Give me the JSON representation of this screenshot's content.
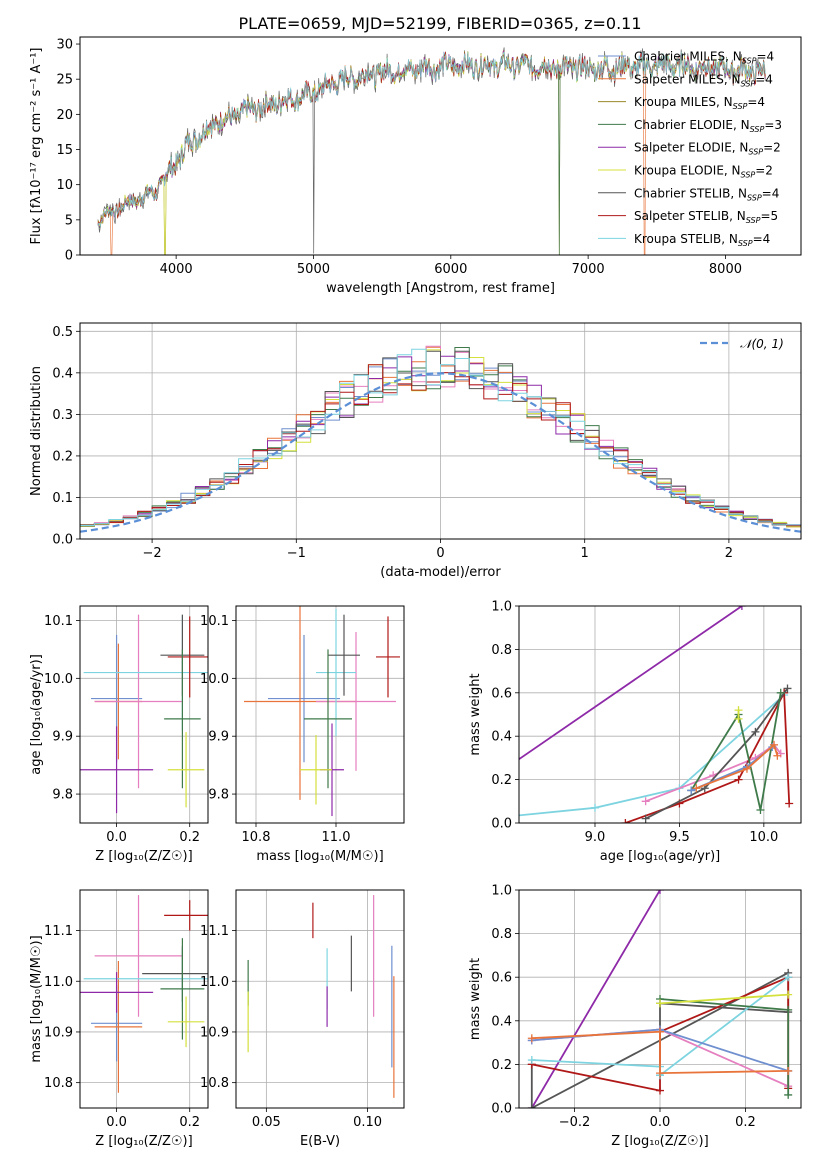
{
  "title": "PLATE=0659, MJD=52199, FIBERID=0365, z=0.11",
  "colors": {
    "chabrier_miles": "#6f8fcf",
    "salpeter_miles": "#e8743b",
    "kroupa_miles": "#9a8a2a",
    "chabrier_elodie": "#3f7a4a",
    "salpeter_elodie": "#8e2aa8",
    "kroupa_elodie": "#d4e03c",
    "chabrier_stelib": "#555555",
    "salpeter_stelib": "#b01818",
    "kroupa_stelib": "#7dd4e0",
    "normal": "#5b8fd6",
    "pink": "#e57fbf",
    "grid": "#b0b0b0"
  },
  "legend_top": [
    {
      "key": "chabrier_miles",
      "label": "Chabrier MILES, N",
      "sub": "SSP",
      "n": "=4"
    },
    {
      "key": "salpeter_miles",
      "label": "Salpeter MILES, N",
      "sub": "SSP",
      "n": "=4"
    },
    {
      "key": "kroupa_miles",
      "label": "Kroupa MILES, N",
      "sub": "SSP",
      "n": "=4"
    },
    {
      "key": "chabrier_elodie",
      "label": "Chabrier ELODIE, N",
      "sub": "SSP",
      "n": "=3"
    },
    {
      "key": "salpeter_elodie",
      "label": "Salpeter ELODIE, N",
      "sub": "SSP",
      "n": "=2"
    },
    {
      "key": "kroupa_elodie",
      "label": "Kroupa ELODIE, N",
      "sub": "SSP",
      "n": "=2"
    },
    {
      "key": "chabrier_stelib",
      "label": "Chabrier STELIB, N",
      "sub": "SSP",
      "n": "=4"
    },
    {
      "key": "salpeter_stelib",
      "label": "Salpeter STELIB, N",
      "sub": "SSP",
      "n": "=5"
    },
    {
      "key": "kroupa_stelib",
      "label": "Kroupa STELIB, N",
      "sub": "SSP",
      "n": "=4"
    }
  ],
  "legend_hist": "𝒩(0, 1)",
  "chart_data": [
    {
      "type": "line",
      "panel": "spectrum",
      "xlabel": "wavelength [Angstrom, rest frame]",
      "ylabel": "Flux [fλ10⁻¹⁷ erg cm⁻² s⁻¹ A⁻¹]",
      "xlim": [
        3300,
        8550
      ],
      "ylim": [
        0,
        31
      ],
      "xticks": [
        "4000",
        "5000",
        "6000",
        "7000",
        "8000"
      ],
      "yticks": [
        "0",
        "5",
        "10",
        "15",
        "20",
        "25",
        "30"
      ],
      "x_range": [
        3430,
        8290
      ],
      "continuum": [
        [
          3430,
          5
        ],
        [
          3600,
          7
        ],
        [
          3850,
          9
        ],
        [
          3950,
          12
        ],
        [
          4100,
          16
        ],
        [
          4300,
          19
        ],
        [
          4600,
          21
        ],
        [
          5000,
          23
        ],
        [
          5200,
          25
        ],
        [
          5500,
          26
        ],
        [
          6000,
          27
        ],
        [
          6500,
          27
        ],
        [
          7000,
          26.5
        ],
        [
          7500,
          27
        ],
        [
          8000,
          26.5
        ],
        [
          8290,
          26
        ]
      ]
    },
    {
      "type": "bar",
      "panel": "residual_histogram",
      "xlabel": "(data-model)/error",
      "ylabel": "Normed distribution",
      "xlim": [
        -2.5,
        2.5
      ],
      "ylim": [
        0,
        0.52
      ],
      "xticks": [
        "−2",
        "−1",
        "0",
        "1",
        "2"
      ],
      "yticks": [
        "0.0",
        "0.1",
        "0.2",
        "0.3",
        "0.4",
        "0.5"
      ],
      "bin_width": 0.1,
      "reference": "normal(0,1)"
    },
    {
      "type": "scatter",
      "panel": "age_vs_Z",
      "xlabel": "Z [log₁₀(Z/Z☉)]",
      "ylabel": "age  [log₁₀(age/yr)]",
      "xlim": [
        -0.1,
        0.25
      ],
      "ylim": [
        9.75,
        10.125
      ],
      "xticks": [
        "0.0",
        "0.2"
      ],
      "yticks": [
        "9.8",
        "9.9",
        "10.0",
        "10.1"
      ],
      "points": [
        {
          "s": "chabrier_miles",
          "x": 0.0,
          "xerr": 0.07,
          "y": 9.965,
          "yerr": 0.11
        },
        {
          "s": "salpeter_miles",
          "x": 0.005,
          "xerr": 0.065,
          "y": 9.96,
          "yerr": 0.1
        },
        {
          "s": "pink",
          "x": 0.06,
          "xerr": 0.12,
          "y": 9.96,
          "yerr": 0.15
        },
        {
          "s": "kroupa_stelib",
          "x": 0.18,
          "xerr": 0.27,
          "y": 10.01,
          "yerr": 0.1
        },
        {
          "s": "chabrier_stelib",
          "x": 0.18,
          "xerr": 0.06,
          "y": 10.04,
          "yerr": 0.07
        },
        {
          "s": "salpeter_stelib",
          "x": 0.2,
          "xerr": 0.06,
          "y": 10.037,
          "yerr": 0.07
        },
        {
          "s": "chabrier_elodie",
          "x": 0.18,
          "xerr": 0.05,
          "y": 9.93,
          "yerr": 0.12
        },
        {
          "s": "salpeter_elodie",
          "x": 0.0,
          "xerr": 0.1,
          "y": 9.842,
          "yerr": 0.075
        },
        {
          "s": "kroupa_elodie",
          "x": 0.19,
          "xerr": 0.05,
          "y": 9.842,
          "yerr": 0.065
        }
      ]
    },
    {
      "type": "scatter",
      "panel": "age_vs_mass",
      "xlabel": "mass [log₁₀(M/M☉)]",
      "ylabel": "",
      "xlim": [
        10.75,
        11.17
      ],
      "ylim": [
        9.75,
        10.125
      ],
      "xticks": [
        "10.8",
        "11.0"
      ],
      "yticks": [
        "9.8",
        "9.9",
        "10.0",
        "10.1"
      ],
      "points": [
        {
          "s": "chabrier_miles",
          "x": 10.92,
          "xerr": 0.09,
          "y": 9.965,
          "yerr": 0.11
        },
        {
          "s": "salpeter_miles",
          "x": 10.91,
          "xerr": 0.14,
          "y": 9.96,
          "yerr": 0.17
        },
        {
          "s": "pink",
          "x": 11.05,
          "xerr": 0.1,
          "y": 9.96,
          "yerr": 0.12
        },
        {
          "s": "kroupa_stelib",
          "x": 11.0,
          "xerr": 0.05,
          "y": 10.01,
          "yerr": 0.11
        },
        {
          "s": "chabrier_stelib",
          "x": 11.02,
          "xerr": 0.04,
          "y": 10.04,
          "yerr": 0.07
        },
        {
          "s": "salpeter_stelib",
          "x": 11.13,
          "xerr": 0.03,
          "y": 10.037,
          "yerr": 0.07
        },
        {
          "s": "chabrier_elodie",
          "x": 10.98,
          "xerr": 0.06,
          "y": 9.93,
          "yerr": 0.12
        },
        {
          "s": "salpeter_elodie",
          "x": 10.99,
          "xerr": 0.03,
          "y": 9.842,
          "yerr": 0.08
        },
        {
          "s": "kroupa_elodie",
          "x": 10.95,
          "xerr": 0.04,
          "y": 9.842,
          "yerr": 0.06
        }
      ]
    },
    {
      "type": "line",
      "panel": "massweight_vs_age",
      "xlabel": "age  [log₁₀(age/yr)]",
      "ylabel": "mass weight",
      "xlim": [
        8.55,
        10.22
      ],
      "ylim": [
        0,
        1
      ],
      "xticks": [
        "9.0",
        "9.5",
        "10.0"
      ],
      "yticks": [
        "0.0",
        "0.2",
        "0.4",
        "0.6",
        "0.8",
        "1.0"
      ],
      "series": [
        {
          "s": "salpeter_elodie",
          "pts": [
            [
              8.0,
              0.0
            ],
            [
              9.87,
              1.0
            ]
          ]
        },
        {
          "s": "kroupa_stelib",
          "pts": [
            [
              8.1,
              0.0
            ],
            [
              9.0,
              0.07
            ],
            [
              9.5,
              0.16
            ],
            [
              10.12,
              0.59
            ]
          ]
        },
        {
          "s": "pink",
          "pts": [
            [
              9.3,
              0.1
            ],
            [
              9.7,
              0.22
            ],
            [
              9.95,
              0.3
            ],
            [
              10.06,
              0.36
            ],
            [
              10.1,
              0.32
            ]
          ]
        },
        {
          "s": "salpeter_stelib",
          "pts": [
            [
              9.18,
              0.0
            ],
            [
              9.5,
              0.09
            ],
            [
              9.85,
              0.2
            ],
            [
              10.12,
              0.6
            ],
            [
              10.15,
              0.09
            ]
          ]
        },
        {
          "s": "chabrier_stelib",
          "pts": [
            [
              9.3,
              0.02
            ],
            [
              9.65,
              0.16
            ],
            [
              9.95,
              0.42
            ],
            [
              10.14,
              0.62
            ]
          ]
        },
        {
          "s": "chabrier_elodie",
          "pts": [
            [
              9.57,
              0.15
            ],
            [
              9.85,
              0.5
            ],
            [
              9.98,
              0.06
            ],
            [
              10.1,
              0.6
            ]
          ]
        },
        {
          "s": "chabrier_miles",
          "pts": [
            [
              9.57,
              0.15
            ],
            [
              9.9,
              0.26
            ],
            [
              10.05,
              0.35
            ]
          ]
        },
        {
          "s": "salpeter_miles",
          "pts": [
            [
              9.6,
              0.16
            ],
            [
              9.9,
              0.25
            ],
            [
              10.06,
              0.36
            ],
            [
              10.08,
              0.31
            ]
          ]
        },
        {
          "s": "kroupa_elodie",
          "pts": [
            [
              9.85,
              0.48
            ],
            [
              9.85,
              0.52
            ]
          ]
        }
      ]
    },
    {
      "type": "scatter",
      "panel": "mass_vs_Z",
      "xlabel": "Z [log₁₀(Z/Z☉)]",
      "ylabel": "mass [log₁₀(M/M☉)]",
      "xlim": [
        -0.1,
        0.25
      ],
      "ylim": [
        10.75,
        11.18
      ],
      "xticks": [
        "0.0",
        "0.2"
      ],
      "yticks": [
        "10.8",
        "10.9",
        "11.0",
        "11.1"
      ],
      "points": [
        {
          "s": "chabrier_miles",
          "x": 0.0,
          "xerr": 0.07,
          "y": 10.917,
          "yerr": 0.075
        },
        {
          "s": "salpeter_miles",
          "x": 0.005,
          "xerr": 0.065,
          "y": 10.91,
          "yerr": 0.13
        },
        {
          "s": "pink",
          "x": 0.06,
          "xerr": 0.12,
          "y": 11.05,
          "yerr": 0.12
        },
        {
          "s": "kroupa_stelib",
          "x": 0.18,
          "xerr": 0.27,
          "y": 11.005,
          "yerr": 0.06
        },
        {
          "s": "chabrier_stelib",
          "x": 0.18,
          "xerr": 0.11,
          "y": 11.015,
          "yerr": 0.055
        },
        {
          "s": "salpeter_stelib",
          "x": 0.2,
          "xerr": 0.07,
          "y": 11.13,
          "yerr": 0.03
        },
        {
          "s": "chabrier_elodie",
          "x": 0.18,
          "xerr": 0.06,
          "y": 10.985,
          "yerr": 0.1
        },
        {
          "s": "salpeter_elodie",
          "x": 0.0,
          "xerr": 0.1,
          "y": 10.978,
          "yerr": 0.04
        },
        {
          "s": "kroupa_elodie",
          "x": 0.19,
          "xerr": 0.05,
          "y": 10.92,
          "yerr": 0.05
        }
      ]
    },
    {
      "type": "scatter",
      "panel": "mass_vs_EBV",
      "xlabel": "E(B-V)",
      "ylabel": "",
      "xlim": [
        0.035,
        0.118
      ],
      "ylim": [
        10.75,
        11.18
      ],
      "xticks": [
        "0.05",
        "0.10"
      ],
      "yticks": [
        "10.8",
        "10.9",
        "11.0",
        "11.1"
      ],
      "points": [
        {
          "s": "chabrier_elodie",
          "x": 0.041,
          "yerr": 0.045,
          "y": 10.997
        },
        {
          "s": "kroupa_elodie",
          "x": 0.041,
          "yerr": 0.06,
          "y": 10.92
        },
        {
          "s": "salpeter_stelib",
          "x": 0.073,
          "yerr": 0.035,
          "y": 11.12
        },
        {
          "s": "kroupa_stelib",
          "x": 0.08,
          "yerr": 0.06,
          "y": 11.005
        },
        {
          "s": "salpeter_elodie",
          "x": 0.08,
          "yerr": 0.04,
          "y": 10.95
        },
        {
          "s": "chabrier_stelib",
          "x": 0.092,
          "yerr": 0.055,
          "y": 11.035
        },
        {
          "s": "pink",
          "x": 0.103,
          "yerr": 0.12,
          "y": 11.05
        },
        {
          "s": "chabrier_miles",
          "x": 0.112,
          "yerr": 0.12,
          "y": 10.95
        },
        {
          "s": "salpeter_miles",
          "x": 0.113,
          "yerr": 0.12,
          "y": 10.89
        }
      ]
    },
    {
      "type": "line",
      "panel": "massweight_vs_Z",
      "xlabel": "Z [log₁₀(Z/Z☉)]",
      "ylabel": "mass weight",
      "xlim": [
        -0.33,
        0.33
      ],
      "ylim": [
        0,
        1
      ],
      "xticks": [
        "−0.2",
        "0.0",
        "0.2"
      ],
      "yticks": [
        "0.0",
        "0.2",
        "0.4",
        "0.6",
        "0.8",
        "1.0"
      ],
      "series": [
        {
          "s": "salpeter_elodie",
          "pts": [
            [
              -0.3,
              0.0
            ],
            [
              0.0,
              1.0
            ]
          ]
        },
        {
          "s": "chabrier_stelib",
          "pts": [
            [
              -0.3,
              0.2
            ],
            [
              -0.3,
              0.0
            ],
            [
              0.3,
              0.62
            ],
            [
              0.3,
              0.44
            ],
            [
              0.0,
              0.48
            ],
            [
              0.0,
              0.15
            ]
          ]
        },
        {
          "s": "salpeter_stelib",
          "pts": [
            [
              -0.3,
              0.2
            ],
            [
              0.0,
              0.08
            ],
            [
              0.0,
              0.35
            ],
            [
              0.3,
              0.6
            ],
            [
              0.3,
              0.09
            ]
          ]
        },
        {
          "s": "kroupa_stelib",
          "pts": [
            [
              -0.3,
              0.22
            ],
            [
              0.0,
              0.19
            ],
            [
              0.0,
              0.15
            ],
            [
              0.3,
              0.6
            ]
          ]
        },
        {
          "s": "pink",
          "pts": [
            [
              -0.3,
              0.31
            ],
            [
              0.0,
              0.36
            ],
            [
              0.3,
              0.1
            ]
          ]
        },
        {
          "s": "chabrier_elodie",
          "pts": [
            [
              0.0,
              0.5
            ],
            [
              0.3,
              0.45
            ],
            [
              0.3,
              0.06
            ]
          ]
        },
        {
          "s": "kroupa_elodie",
          "pts": [
            [
              0.0,
              0.48
            ],
            [
              0.3,
              0.52
            ]
          ]
        },
        {
          "s": "chabrier_miles",
          "pts": [
            [
              -0.3,
              0.31
            ],
            [
              0.0,
              0.36
            ],
            [
              0.3,
              0.17
            ]
          ]
        },
        {
          "s": "salpeter_miles",
          "pts": [
            [
              -0.3,
              0.32
            ],
            [
              0.0,
              0.35
            ],
            [
              0.0,
              0.16
            ],
            [
              0.3,
              0.17
            ]
          ]
        }
      ]
    }
  ]
}
